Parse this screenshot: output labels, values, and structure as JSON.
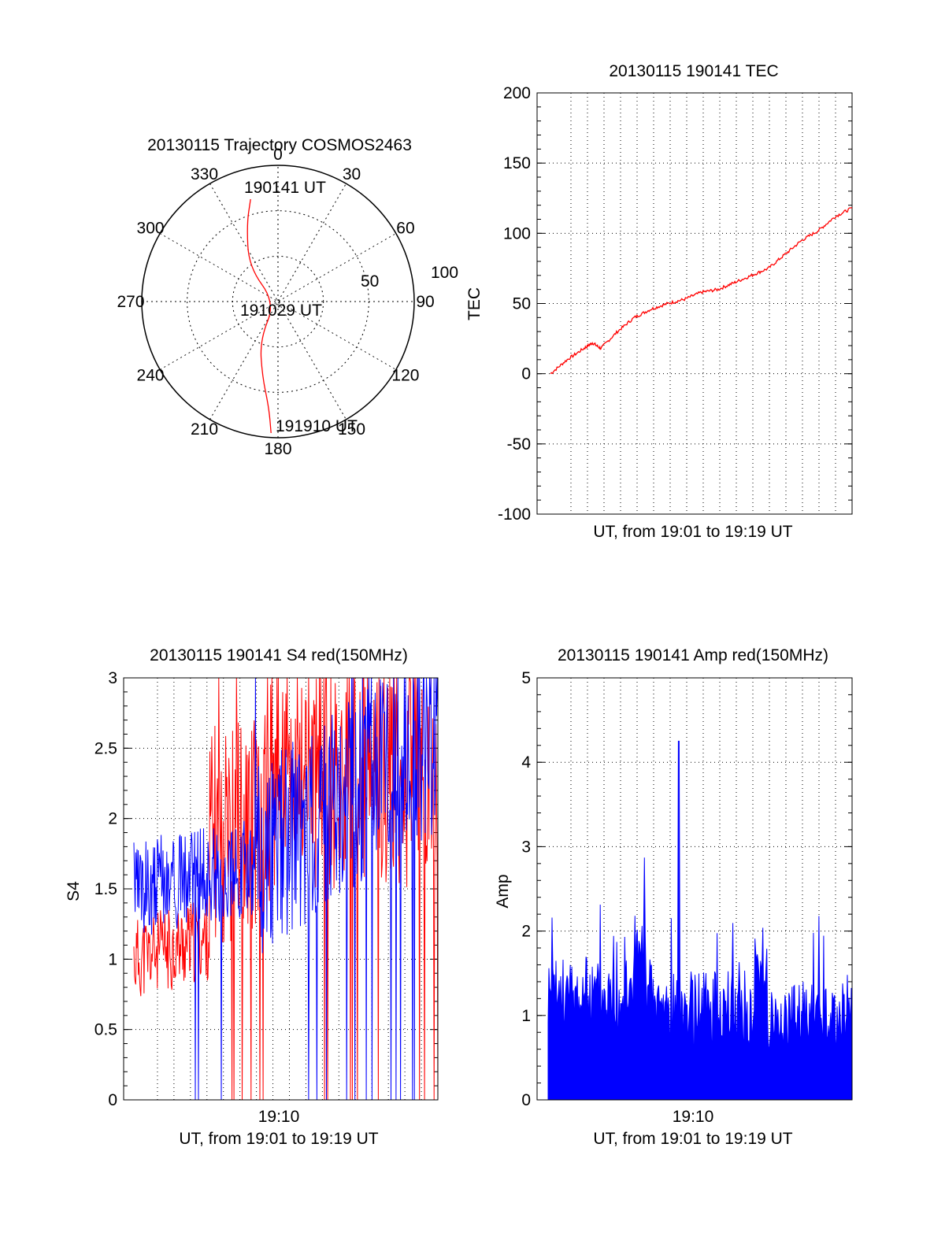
{
  "colors": {
    "red": "#ff0000",
    "blue": "#0000ff",
    "axis": "#000000",
    "grid": "#000000"
  },
  "chart_data": [
    {
      "type": "polar",
      "title": "20130115 Trajectory COSMOS2463",
      "azimuth_ticks": [
        "0",
        "30",
        "60",
        "90",
        "120",
        "150",
        "180",
        "210",
        "240",
        "270",
        "300",
        "330"
      ],
      "elevation_ticks": [
        "50",
        "100"
      ],
      "grid": true,
      "trajectory": {
        "color": "red",
        "points": [
          {
            "az": 345,
            "el": 20
          },
          {
            "az": 338,
            "el": 35
          },
          {
            "az": 320,
            "el": 60
          },
          {
            "az": 250,
            "el": 88
          },
          {
            "az": 205,
            "el": 62
          },
          {
            "az": 192,
            "el": 40
          },
          {
            "az": 185,
            "el": 20
          },
          {
            "az": 183,
            "el": 3
          }
        ]
      },
      "annotations": {
        "start": "190141 UT",
        "mid": "191029 UT",
        "end": "191910 UT"
      }
    },
    {
      "type": "line",
      "title": "20130115 190141 TEC",
      "xlabel": "UT, from 19:01 to 19:19 UT",
      "ylabel": "TEC",
      "ylim": [
        -100,
        200
      ],
      "yticks": [
        "200",
        "150",
        "100",
        "50",
        "0",
        "-50",
        "-100"
      ],
      "xlim": [
        0,
        18
      ],
      "grid": true,
      "series": [
        {
          "color": "red",
          "x": [
            0,
            1,
            2,
            2.5,
            3,
            4,
            5,
            6,
            7,
            8,
            9,
            10,
            11,
            12,
            13,
            14,
            15,
            16,
            17,
            18
          ],
          "y": [
            0,
            10,
            18,
            22,
            18,
            30,
            40,
            46,
            50,
            53,
            58,
            60,
            65,
            70,
            75,
            85,
            95,
            102,
            112,
            118
          ]
        }
      ]
    },
    {
      "type": "line",
      "title": "20130115 190141 S4 red(150MHz)",
      "xlabel": "UT, from 19:01 to 19:19 UT",
      "ylabel": "S4",
      "ylim": [
        0,
        3
      ],
      "yticks": [
        "3",
        "2.5",
        "2",
        "1.5",
        "1",
        "0.5",
        "0"
      ],
      "xtick_label": "19:10",
      "xlim": [
        0,
        18
      ],
      "grid": true,
      "series": [
        {
          "color": "red",
          "description_free": true
        },
        {
          "color": "blue",
          "description_free": true
        }
      ]
    },
    {
      "type": "bar",
      "title": "20130115 190141 Amp red(150MHz)",
      "xlabel": "UT, from 19:01 to 19:19 UT",
      "ylabel": "Amp",
      "ylim": [
        0,
        5
      ],
      "yticks": [
        "5",
        "4",
        "3",
        "2",
        "1",
        "0"
      ],
      "xtick_label": "19:10",
      "xlim": [
        0,
        18
      ],
      "grid": true,
      "series": [
        {
          "color": "blue",
          "peak": 4.25,
          "typical": 1.2
        }
      ]
    }
  ]
}
